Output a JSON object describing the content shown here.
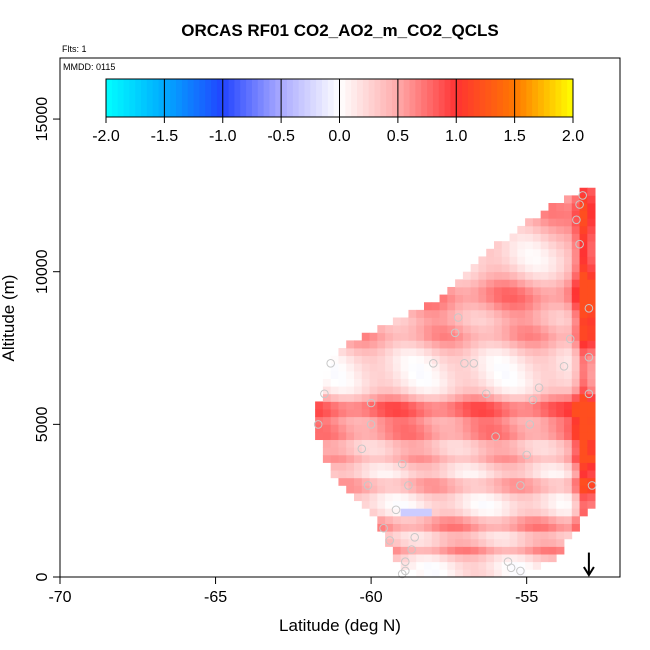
{
  "chart_data": {
    "type": "heatmap",
    "title": "ORCAS RF01 CO2_AO2_m_CO2_QCLS",
    "xlabel": "Latitude (deg N)",
    "ylabel": "Altitude (m)",
    "xlim": [
      -70,
      -52
    ],
    "ylim": [
      0,
      17000
    ],
    "x_ticks": [
      -70,
      -65,
      -60,
      -55
    ],
    "x_tick_labels": [
      "-70",
      "-65",
      "-60",
      "-55"
    ],
    "y_ticks": [
      0,
      5000,
      10000,
      15000
    ],
    "y_tick_labels": [
      "0",
      "5000",
      "10000",
      "15000"
    ],
    "notes": {
      "flights": "Flts: 1",
      "date": "MMDD: 0115"
    },
    "colorbar": {
      "range": [
        -2.0,
        2.0
      ],
      "ticks": [
        -2.0,
        -1.5,
        -1.0,
        -0.5,
        0.0,
        0.5,
        1.0,
        1.5,
        2.0
      ],
      "tick_labels": [
        "-2.0",
        "-1.5",
        "-1.0",
        "-0.5",
        "0.0",
        "0.5",
        "1.0",
        "1.5",
        "2.0"
      ],
      "stops": [
        {
          "v": -2.0,
          "color": "#00ffff"
        },
        {
          "v": -1.5,
          "color": "#00aaff"
        },
        {
          "v": -1.0,
          "color": "#2244ff"
        },
        {
          "v": -0.5,
          "color": "#aaaaff"
        },
        {
          "v": 0.0,
          "color": "#ffffff"
        },
        {
          "v": 0.5,
          "color": "#ffaaaa"
        },
        {
          "v": 1.0,
          "color": "#ff3333"
        },
        {
          "v": 1.5,
          "color": "#ff7700"
        },
        {
          "v": 2.0,
          "color": "#ffff00"
        }
      ]
    },
    "field": {
      "lat_min": -61.8,
      "lat_max": -52.9,
      "lat_step": 0.25,
      "alt_step": 250,
      "envelope_top": [
        [
          -61.8,
          5200
        ],
        [
          -61.3,
          7300
        ],
        [
          -60.0,
          8000
        ],
        [
          -58.0,
          9000
        ],
        [
          -56.5,
          10500
        ],
        [
          -54.5,
          12000
        ],
        [
          -53.0,
          12800
        ]
      ],
      "envelope_bottom": [
        [
          -61.8,
          4800
        ],
        [
          -61.3,
          3500
        ],
        [
          -60.0,
          2200
        ],
        [
          -59.0,
          200
        ],
        [
          -58.0,
          0
        ],
        [
          -55.0,
          100
        ],
        [
          -54.0,
          600
        ],
        [
          -53.5,
          1500
        ],
        [
          -52.9,
          2300
        ]
      ],
      "descent_lat": -53.1,
      "bands": [
        {
          "alt": 12000,
          "width": 900,
          "amp": 0.45
        },
        {
          "alt": 9200,
          "width": 700,
          "amp": 0.55
        },
        {
          "alt": 7900,
          "width": 500,
          "amp": 0.4
        },
        {
          "alt": 5500,
          "width": 450,
          "amp": 0.7
        },
        {
          "alt": 4700,
          "width": 350,
          "amp": 0.5
        },
        {
          "alt": 3900,
          "width": 300,
          "amp": 0.35
        },
        {
          "alt": 3000,
          "width": 280,
          "amp": 0.4
        },
        {
          "alt": 1700,
          "width": 300,
          "amp": 0.5
        },
        {
          "alt": 900,
          "width": 250,
          "amp": 0.45
        }
      ],
      "negative_spot": {
        "lat": -58.6,
        "alt": 2150,
        "value": -0.3
      }
    },
    "sample_points": [
      [
        -53.2,
        12500
      ],
      [
        -53.3,
        12200
      ],
      [
        -53.4,
        11700
      ],
      [
        -53.3,
        10900
      ],
      [
        -53.0,
        8800
      ],
      [
        -53.6,
        7800
      ],
      [
        -53.0,
        7200
      ],
      [
        -53.8,
        6900
      ],
      [
        -53.0,
        6000
      ],
      [
        -54.6,
        6200
      ],
      [
        -54.8,
        5800
      ],
      [
        -54.9,
        5000
      ],
      [
        -55.0,
        4000
      ],
      [
        -55.2,
        3000
      ],
      [
        -52.9,
        3000
      ],
      [
        -55.6,
        500
      ],
      [
        -55.5,
        300
      ],
      [
        -55.2,
        200
      ],
      [
        -56.0,
        4600
      ],
      [
        -56.3,
        6000
      ],
      [
        -56.7,
        7000
      ],
      [
        -57.2,
        8500
      ],
      [
        -57.0,
        7000
      ],
      [
        -57.3,
        8000
      ],
      [
        -58.0,
        7000
      ],
      [
        -60.0,
        5700
      ],
      [
        -60.3,
        4200
      ],
      [
        -60.1,
        3000
      ],
      [
        -59.0,
        3700
      ],
      [
        -58.8,
        3000
      ],
      [
        -59.2,
        2200
      ],
      [
        -59.6,
        1600
      ],
      [
        -59.4,
        1200
      ],
      [
        -58.6,
        1300
      ],
      [
        -58.7,
        900
      ],
      [
        -58.9,
        500
      ],
      [
        -58.9,
        200
      ],
      [
        -59.0,
        100
      ],
      [
        -60.0,
        5000
      ],
      [
        -61.3,
        7000
      ],
      [
        -61.5,
        6000
      ],
      [
        -61.7,
        5000
      ]
    ],
    "arrow": {
      "lat": -53.0,
      "alt_top": 800,
      "alt_bottom": 0,
      "direction": "down"
    }
  }
}
